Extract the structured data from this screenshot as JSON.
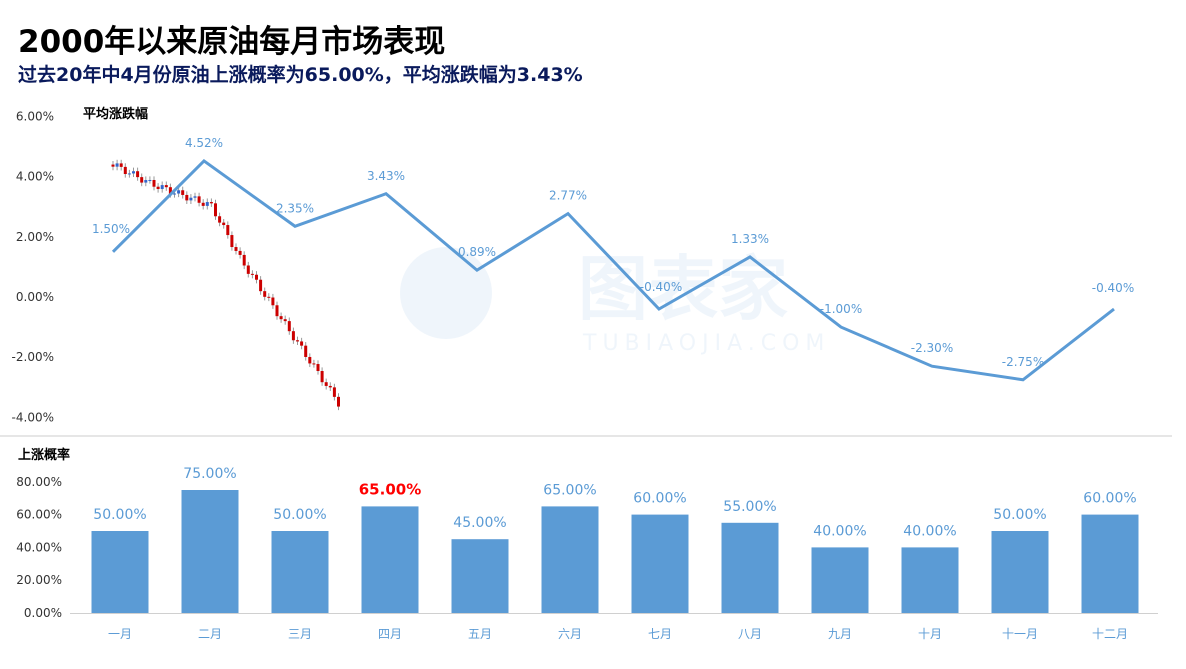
{
  "title": "2000年以来原油每月市场表现",
  "subtitle": "过去20年中4月份原油上涨概率为65.00%，平均涨跌幅为3.43%",
  "colors": {
    "line": "#5b9bd5",
    "bar": "#5b9bd5",
    "label": "#5b9bd5",
    "highlight": "#ff0000",
    "axis_text": "#333333",
    "candle_up": "#cc0000",
    "candle_down": "#3366cc"
  },
  "watermark": {
    "cn": "图表家",
    "en": "TUBIAOJIA.COM"
  },
  "chart_data": [
    {
      "type": "line",
      "ylabel": "平均涨跌幅",
      "categories": [
        "一月",
        "二月",
        "三月",
        "四月",
        "五月",
        "六月",
        "七月",
        "八月",
        "九月",
        "十月",
        "十一月",
        "十二月"
      ],
      "values": [
        1.5,
        4.52,
        2.35,
        3.43,
        0.89,
        2.77,
        -0.4,
        1.33,
        -1.0,
        -2.3,
        -2.75,
        -0.4
      ],
      "value_labels": [
        "1.50%",
        "4.52%",
        "2.35%",
        "3.43%",
        "0.89%",
        "2.77%",
        "-0.40%",
        "1.33%",
        "-1.00%",
        "-2.30%",
        "-2.75%",
        "-0.40%"
      ],
      "yticks": [
        "6.00%",
        "4.00%",
        "2.00%",
        "0.00%",
        "-2.00%",
        "-4.00%"
      ],
      "ylim": [
        -4.5,
        6.0
      ],
      "grid": false
    },
    {
      "type": "bar",
      "ylabel": "上涨概率",
      "categories": [
        "一月",
        "二月",
        "三月",
        "四月",
        "五月",
        "六月",
        "七月",
        "八月",
        "九月",
        "十月",
        "十一月",
        "十二月"
      ],
      "values": [
        50,
        75,
        50,
        65,
        45,
        65,
        60,
        55,
        40,
        40,
        50,
        60
      ],
      "value_labels": [
        "50.00%",
        "75.00%",
        "50.00%",
        "65.00%",
        "45.00%",
        "65.00%",
        "60.00%",
        "55.00%",
        "40.00%",
        "40.00%",
        "50.00%",
        "60.00%"
      ],
      "highlight_index": 3,
      "yticks": [
        "80.00%",
        "60.00%",
        "40.00%",
        "20.00%",
        "0.00%"
      ],
      "ylim": [
        0,
        80
      ],
      "grid": false
    }
  ]
}
